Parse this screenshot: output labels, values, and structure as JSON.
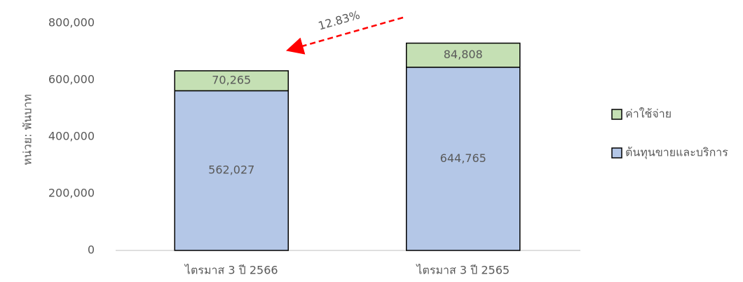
{
  "chart_data": {
    "type": "stacked_bar",
    "y_axis_label": "หน่วย: พันบาท",
    "annotation": "12.83%",
    "categories": [
      "ไตรมาส 3 ปี 2566",
      "ไตรมาส 3 ปี 2565"
    ],
    "series": [
      {
        "name": "ต้นทุนขายและบริการ",
        "color": "#b4c7e7",
        "values": [
          562027,
          644765
        ],
        "value_labels": [
          "562,027",
          "644,765"
        ]
      },
      {
        "name": "ค่าใช้จ่าย",
        "color": "#c5e0b4",
        "values": [
          70265,
          84808
        ],
        "value_labels": [
          "70,265",
          "84,808"
        ]
      }
    ],
    "ylim": [
      0,
      800000
    ],
    "yticks": [
      0,
      {
        "value": 200000,
        "label": "200,000"
      },
      {
        "value": 400000,
        "label": "400,000"
      },
      {
        "value": 600000,
        "label": "600,000"
      },
      {
        "value": 800000,
        "label": "800,000"
      }
    ],
    "grid": false,
    "legend": "right"
  }
}
